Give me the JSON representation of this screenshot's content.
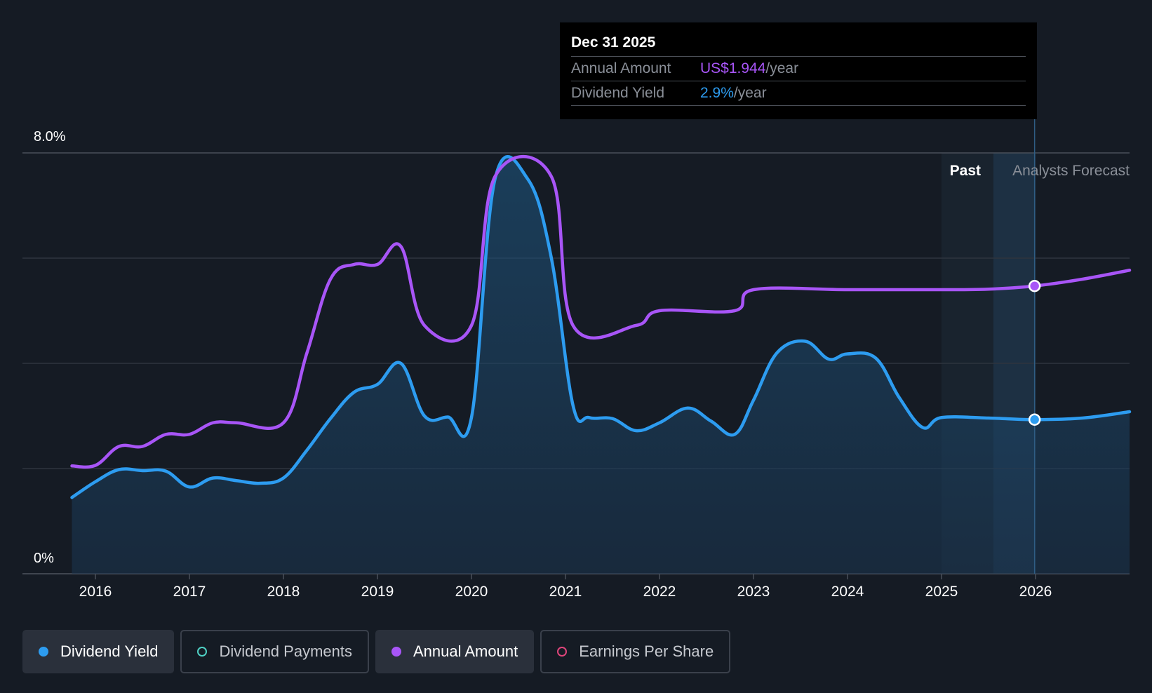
{
  "tooltip": {
    "date": "Dec 31 2025",
    "rows": [
      {
        "label": "Annual Amount",
        "value": "US$1.944",
        "unit": "/year",
        "color": "#a855f7"
      },
      {
        "label": "Dividend Yield",
        "value": "2.9%",
        "unit": "/year",
        "color": "#2d9cf0"
      }
    ]
  },
  "regions": {
    "past": "Past",
    "forecast": "Analysts Forecast"
  },
  "legend": [
    {
      "label": "Dividend Yield",
      "color": "#2d9cf0",
      "active": true,
      "filled": true
    },
    {
      "label": "Dividend Payments",
      "color": "#4fd1c5",
      "active": false,
      "filled": false
    },
    {
      "label": "Annual Amount",
      "color": "#a855f7",
      "active": true,
      "filled": true
    },
    {
      "label": "Earnings Per Share",
      "color": "#e0457b",
      "active": false,
      "filled": false
    }
  ],
  "chart_data": {
    "type": "line",
    "y_ticks": [
      "8.0%",
      "0%"
    ],
    "ylim": [
      0,
      8
    ],
    "xlim": [
      2015.75,
      2027.0
    ],
    "x_ticks": [
      "2016",
      "2017",
      "2018",
      "2019",
      "2020",
      "2021",
      "2022",
      "2023",
      "2024",
      "2025",
      "2026"
    ],
    "forecast_start": 2025.0,
    "highlight_x": 2025.99,
    "grid": true,
    "series": [
      {
        "name": "Dividend Yield",
        "color": "#2d9cf0",
        "area": true,
        "points": [
          [
            2015.75,
            1.45
          ],
          [
            2016.0,
            1.75
          ],
          [
            2016.25,
            1.98
          ],
          [
            2016.5,
            1.96
          ],
          [
            2016.75,
            1.95
          ],
          [
            2017.0,
            1.65
          ],
          [
            2017.25,
            1.82
          ],
          [
            2017.5,
            1.77
          ],
          [
            2017.75,
            1.72
          ],
          [
            2018.0,
            1.82
          ],
          [
            2018.25,
            2.35
          ],
          [
            2018.5,
            2.95
          ],
          [
            2018.75,
            3.45
          ],
          [
            2019.0,
            3.6
          ],
          [
            2019.25,
            4.0
          ],
          [
            2019.5,
            3.0
          ],
          [
            2019.75,
            2.98
          ],
          [
            2020.0,
            2.97
          ],
          [
            2020.25,
            7.5
          ],
          [
            2020.6,
            7.5
          ],
          [
            2020.85,
            6.0
          ],
          [
            2021.08,
            3.2
          ],
          [
            2021.25,
            2.97
          ],
          [
            2021.5,
            2.95
          ],
          [
            2021.75,
            2.72
          ],
          [
            2022.0,
            2.87
          ],
          [
            2022.3,
            3.15
          ],
          [
            2022.55,
            2.9
          ],
          [
            2022.8,
            2.65
          ],
          [
            2023.0,
            3.3
          ],
          [
            2023.25,
            4.2
          ],
          [
            2023.55,
            4.42
          ],
          [
            2023.8,
            4.08
          ],
          [
            2024.0,
            4.18
          ],
          [
            2024.3,
            4.1
          ],
          [
            2024.55,
            3.35
          ],
          [
            2024.8,
            2.78
          ],
          [
            2025.0,
            2.97
          ],
          [
            2025.5,
            2.96
          ],
          [
            2025.99,
            2.93
          ],
          [
            2026.5,
            2.96
          ],
          [
            2027.0,
            3.08
          ]
        ]
      },
      {
        "name": "Annual Amount",
        "color": "#a855f7",
        "area": false,
        "points": [
          [
            2015.75,
            2.05
          ],
          [
            2016.0,
            2.06
          ],
          [
            2016.25,
            2.42
          ],
          [
            2016.5,
            2.42
          ],
          [
            2016.75,
            2.65
          ],
          [
            2017.0,
            2.65
          ],
          [
            2017.25,
            2.87
          ],
          [
            2017.5,
            2.87
          ],
          [
            2018.0,
            2.87
          ],
          [
            2018.25,
            4.2
          ],
          [
            2018.5,
            5.6
          ],
          [
            2018.75,
            5.88
          ],
          [
            2019.0,
            5.88
          ],
          [
            2019.25,
            6.22
          ],
          [
            2019.5,
            4.72
          ],
          [
            2020.0,
            4.72
          ],
          [
            2020.25,
            7.55
          ],
          [
            2020.85,
            7.55
          ],
          [
            2021.08,
            4.72
          ],
          [
            2021.75,
            4.72
          ],
          [
            2022.0,
            5.0
          ],
          [
            2022.8,
            5.0
          ],
          [
            2023.0,
            5.4
          ],
          [
            2024.0,
            5.4
          ],
          [
            2025.0,
            5.4
          ],
          [
            2025.5,
            5.41
          ],
          [
            2025.99,
            5.47
          ],
          [
            2026.5,
            5.6
          ],
          [
            2027.0,
            5.77
          ]
        ]
      }
    ]
  }
}
